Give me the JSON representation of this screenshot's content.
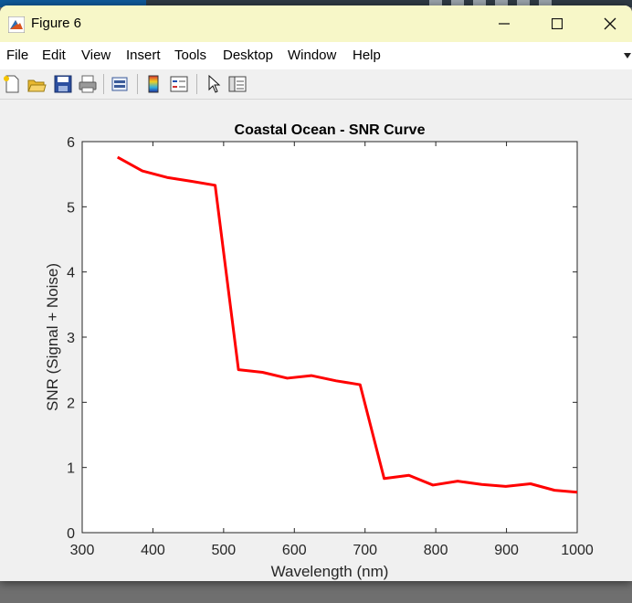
{
  "window": {
    "title": "Figure 6"
  },
  "menu": [
    "File",
    "Edit",
    "View",
    "Insert",
    "Tools",
    "Desktop",
    "Window",
    "Help"
  ],
  "toolbar": [
    {
      "icon": "new-figure-icon"
    },
    {
      "icon": "open-folder-icon"
    },
    {
      "icon": "save-icon"
    },
    {
      "icon": "print-icon"
    },
    {
      "icon": "link-plot-icon"
    },
    {
      "icon": "colorbar-icon"
    },
    {
      "icon": "legend-icon"
    },
    {
      "icon": "pointer-icon"
    },
    {
      "icon": "property-inspector-icon"
    }
  ],
  "colors": {
    "line": "#ff0000",
    "titlebar": "#f7f7c8",
    "background": "#f0f0f0"
  },
  "chart_data": {
    "type": "line",
    "title": "Coastal Ocean - SNR Curve",
    "xlabel": "Wavelength (nm)",
    "ylabel": "SNR (Signal + Noise)",
    "xlim": [
      300,
      1000
    ],
    "ylim": [
      0,
      6
    ],
    "xticks": [
      300,
      400,
      500,
      600,
      700,
      800,
      900,
      1000
    ],
    "yticks": [
      0,
      1,
      2,
      3,
      4,
      5,
      6
    ],
    "grid": false,
    "series": [
      {
        "color": "#ff0000",
        "x": [
          350,
          385,
          420,
          455,
          488,
          521,
          555,
          590,
          624,
          659,
          693,
          727,
          762,
          796,
          831,
          865,
          899,
          934,
          968,
          1000
        ],
        "y": [
          5.76,
          5.55,
          5.45,
          5.39,
          5.33,
          2.5,
          2.46,
          2.37,
          2.41,
          2.33,
          2.27,
          0.83,
          0.88,
          0.73,
          0.79,
          0.74,
          0.71,
          0.75,
          0.65,
          0.62
        ]
      }
    ]
  }
}
